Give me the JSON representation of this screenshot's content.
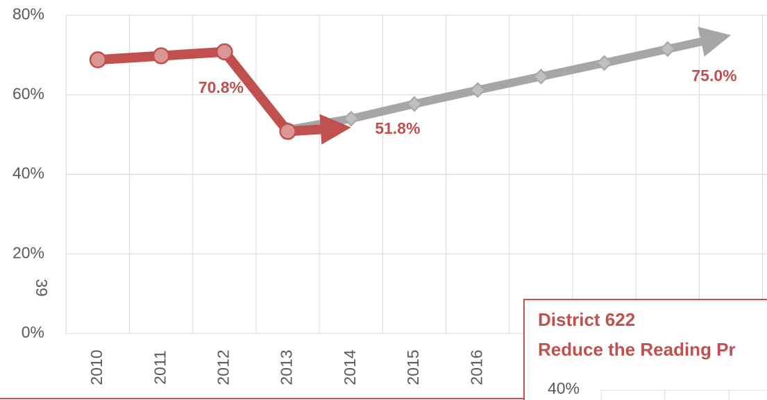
{
  "chart_data": {
    "type": "line",
    "categories": [
      "2010",
      "2011",
      "2012",
      "2013",
      "2014",
      "2015",
      "2016",
      null,
      null,
      null,
      null
    ],
    "series": [
      {
        "color": "#a6a6a6",
        "marker": "diamond",
        "values": [
          null,
          null,
          null,
          51.2,
          54.0,
          57.7,
          61.2,
          64.6,
          68.0,
          71.5,
          75.0
        ],
        "value_labels": [
          null,
          null,
          null,
          null,
          null,
          null,
          null,
          null,
          null,
          null,
          "75.0%"
        ]
      },
      {
        "color": "#c0504d",
        "marker": "circle",
        "values": [
          68.8,
          69.8,
          70.8,
          50.8,
          51.8,
          null,
          null,
          null,
          null,
          null,
          null
        ],
        "value_labels": [
          null,
          null,
          "70.8%",
          null,
          "51.8%",
          null,
          null,
          null,
          null,
          null,
          null
        ]
      }
    ],
    "ylim": [
      0,
      80
    ],
    "yticks": [
      {
        "value": 0,
        "label": "0%"
      },
      {
        "value": 20,
        "label": "20%"
      },
      {
        "value": 40,
        "label": "40%"
      },
      {
        "value": 60,
        "label": "60%"
      },
      {
        "value": 80,
        "label": "80%"
      }
    ],
    "grid": true
  },
  "page_number": "39",
  "inset": {
    "title_lines": [
      "District 622",
      "Reduce the Reading Pr"
    ],
    "tick": "40%"
  }
}
